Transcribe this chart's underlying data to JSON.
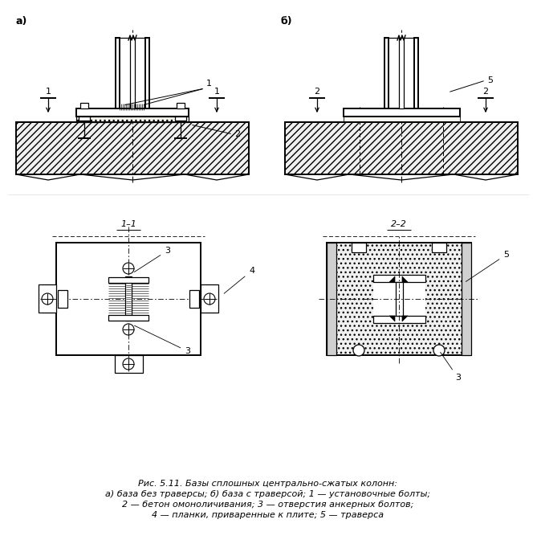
{
  "fig_width": 6.69,
  "fig_height": 6.82,
  "dpi": 100,
  "bg_color": "#ffffff",
  "line_color": "#000000",
  "caption_line1": "Рис. 5.11. Базы сплошных центрально-сжатых колонн:",
  "caption_line2": "а) база без траверсы; б) база с траверсой; 1 — установочные болты;",
  "caption_line3": "2 — бетон омоноличивания; 3 — отверстия анкерных болтов;",
  "caption_line4": "4 — планки, приваренные к плите; 5 — траверса",
  "label_a": "а)",
  "label_b": "б)",
  "label_11": "1–1",
  "label_22": "2–2",
  "font_size_caption": 8.0,
  "font_size_label": 9,
  "font_size_num": 8
}
